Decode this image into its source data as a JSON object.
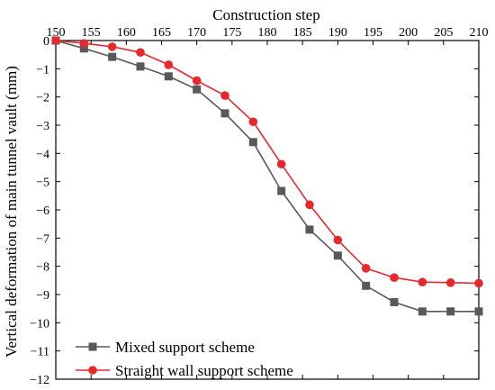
{
  "chart_data": {
    "type": "line",
    "xlabel": "Construction step",
    "ylabel": "Vertical deformation of main tunnel vault (mm)",
    "xlim": [
      150,
      210
    ],
    "ylim": [
      -12,
      0
    ],
    "x_ticks": [
      150,
      155,
      160,
      165,
      170,
      175,
      180,
      185,
      190,
      195,
      200,
      205,
      210
    ],
    "y_ticks": [
      0,
      -1,
      -2,
      -3,
      -4,
      -5,
      -6,
      -7,
      -8,
      -9,
      -10,
      -11,
      -12
    ],
    "x_axis_position": "top",
    "legend_position": "bottom-left",
    "grid": false,
    "series": [
      {
        "name": "Mixed support scheme",
        "color": "#595959",
        "marker": "square",
        "x": [
          150,
          154,
          158,
          162,
          166,
          170,
          174,
          178,
          182,
          186,
          190,
          194,
          198,
          202,
          206,
          210
        ],
        "y": [
          0,
          -0.28,
          -0.58,
          -0.92,
          -1.27,
          -1.73,
          -2.58,
          -3.6,
          -5.33,
          -6.7,
          -7.62,
          -8.69,
          -9.27,
          -9.6,
          -9.6,
          -9.6
        ]
      },
      {
        "name": "Straight wall support scheme",
        "color": "#e8282d",
        "marker": "circle",
        "x": [
          150,
          154,
          158,
          162,
          166,
          170,
          174,
          178,
          182,
          186,
          190,
          194,
          198,
          202,
          206,
          210
        ],
        "y": [
          0,
          -0.1,
          -0.22,
          -0.42,
          -0.86,
          -1.42,
          -1.95,
          -2.88,
          -4.38,
          -5.82,
          -7.07,
          -8.07,
          -8.4,
          -8.56,
          -8.58,
          -8.6
        ]
      }
    ]
  }
}
